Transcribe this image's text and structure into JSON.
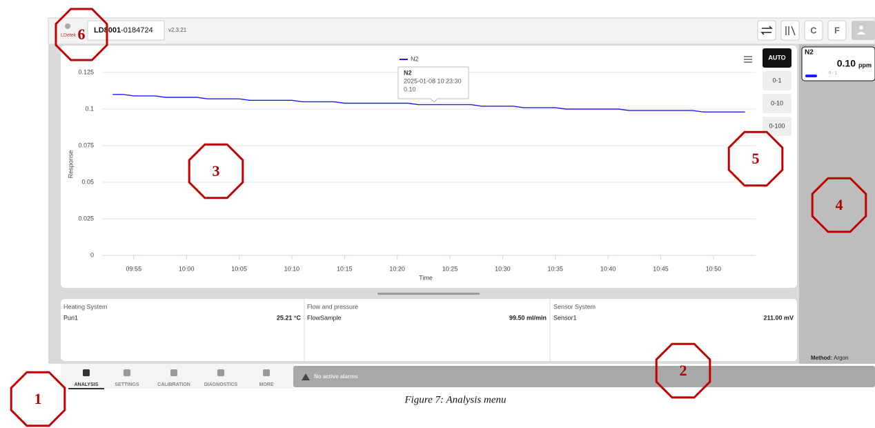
{
  "header": {
    "logo": "LDetek",
    "device_model": "LD8001",
    "device_serial": "-0184724",
    "version": "v2.3.21",
    "buttons": [
      "C",
      "F"
    ]
  },
  "chart_data": {
    "type": "line",
    "legend": "N2",
    "y_label": "Response",
    "x_label": "Time",
    "x": [
      "09:53",
      "09:54",
      "09:55",
      "09:56",
      "09:57",
      "09:58",
      "09:59",
      "10:00",
      "10:01",
      "10:02",
      "10:03",
      "10:04",
      "10:05",
      "10:06",
      "10:07",
      "10:08",
      "10:09",
      "10:10",
      "10:11",
      "10:12",
      "10:13",
      "10:14",
      "10:15",
      "10:16",
      "10:17",
      "10:18",
      "10:19",
      "10:20",
      "10:21",
      "10:22",
      "10:23",
      "10:24",
      "10:25",
      "10:26",
      "10:27",
      "10:28",
      "10:29",
      "10:30",
      "10:31",
      "10:32",
      "10:33",
      "10:34",
      "10:35",
      "10:36",
      "10:37",
      "10:38",
      "10:39",
      "10:40",
      "10:41",
      "10:42",
      "10:43",
      "10:44",
      "10:45",
      "10:46",
      "10:47",
      "10:48",
      "10:49",
      "10:50",
      "10:51",
      "10:52",
      "10:53"
    ],
    "series": [
      {
        "name": "N2",
        "color": "#1a1aff",
        "values": [
          0.11,
          0.11,
          0.109,
          0.109,
          0.109,
          0.108,
          0.108,
          0.108,
          0.108,
          0.107,
          0.107,
          0.107,
          0.107,
          0.106,
          0.106,
          0.106,
          0.106,
          0.106,
          0.105,
          0.105,
          0.105,
          0.105,
          0.104,
          0.104,
          0.104,
          0.104,
          0.104,
          0.104,
          0.104,
          0.103,
          0.103,
          0.103,
          0.103,
          0.103,
          0.103,
          0.102,
          0.102,
          0.102,
          0.102,
          0.101,
          0.101,
          0.101,
          0.101,
          0.1,
          0.1,
          0.1,
          0.1,
          0.1,
          0.1,
          0.099,
          0.099,
          0.099,
          0.099,
          0.099,
          0.099,
          0.099,
          0.098,
          0.098,
          0.098,
          0.098,
          0.098
        ]
      }
    ],
    "xlim": [
      "09:52",
      "10:54"
    ],
    "xticks": [
      "09:55",
      "10:00",
      "10:05",
      "10:10",
      "10:15",
      "10:20",
      "10:25",
      "10:30",
      "10:35",
      "10:40",
      "10:45",
      "10:50"
    ],
    "ylim": [
      0,
      0.125
    ],
    "yticks": [
      0,
      0.025,
      0.05,
      0.075,
      0.1,
      0.125
    ],
    "grid": true,
    "tooltip": {
      "name": "N2",
      "time": "2025-01-08 10:23:30",
      "value": "0.10"
    }
  },
  "range_buttons": [
    "AUTO",
    "0-1",
    "0-10",
    "0-100"
  ],
  "reading": {
    "gas": "N2",
    "value": "0.10",
    "unit": "ppm",
    "range": "0 - 1"
  },
  "panels": [
    {
      "title": "Heating System",
      "item": "Puri1",
      "value": "25.21 °C"
    },
    {
      "title": "Flow and pressure",
      "item": "FlowSample",
      "value": "99.50 ml/min"
    },
    {
      "title": "Sensor System",
      "item": "Sensor1",
      "value": "211.00 mV"
    }
  ],
  "method": {
    "label": "Method:",
    "value": "Argon"
  },
  "nav": [
    "ANALYSIS",
    "SETTINGS",
    "CALIBRATION",
    "DIAGNOSTICS",
    "MORE"
  ],
  "alarm": "No active alarms",
  "caption": "Figure 7: Analysis menu",
  "annotations": [
    "1",
    "2",
    "3",
    "4",
    "5",
    "6"
  ]
}
